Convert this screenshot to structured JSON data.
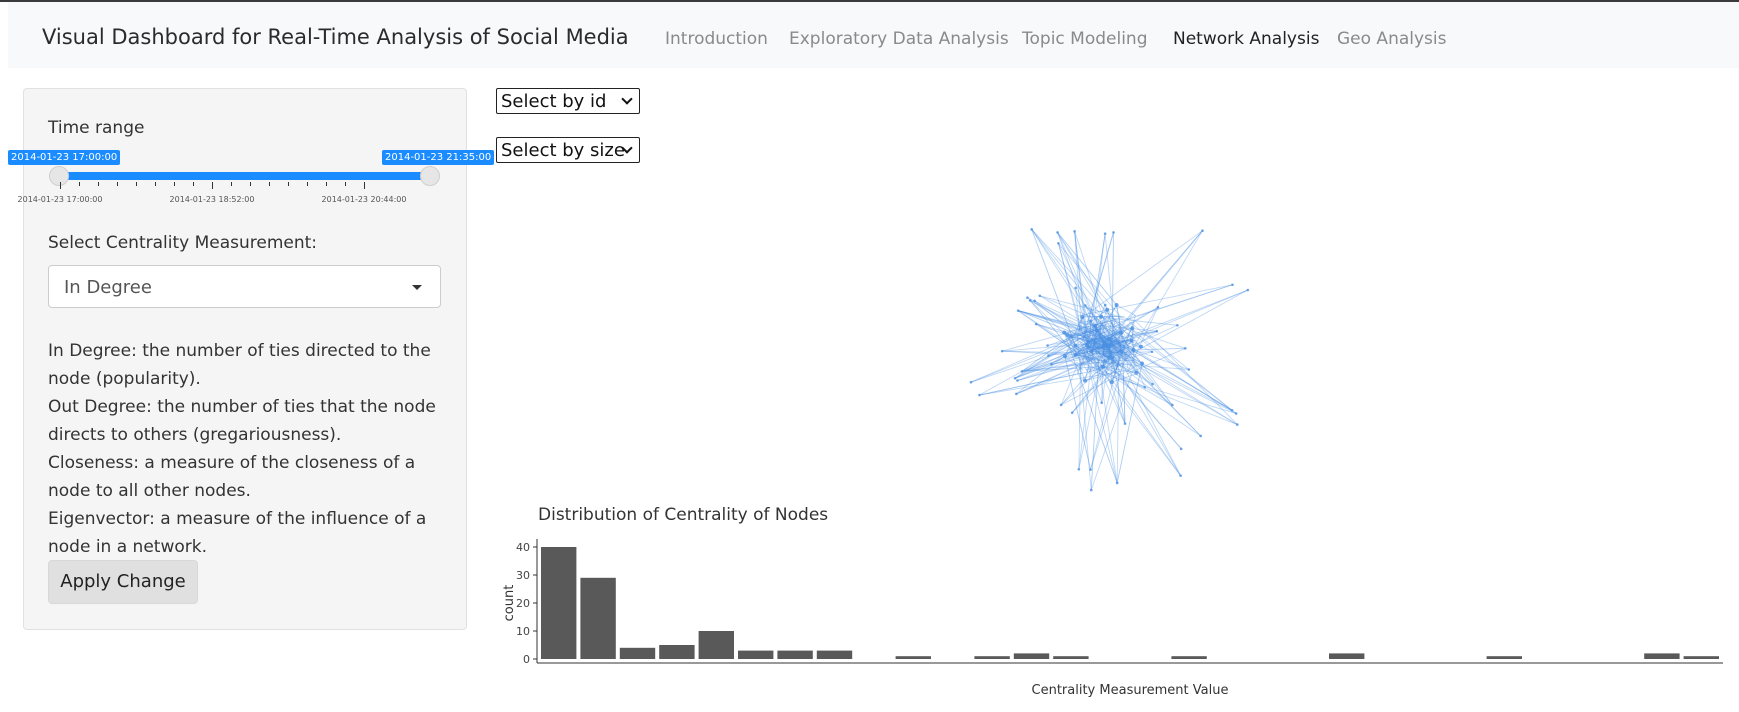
{
  "navbar": {
    "brand": "Visual Dashboard for Real-Time Analysis of Social Media",
    "links": [
      {
        "label": "Introduction",
        "active": false
      },
      {
        "label": "Exploratory Data Analysis",
        "active": false
      },
      {
        "label": "Topic Modeling",
        "active": false
      },
      {
        "label": "Network Analysis",
        "active": true
      },
      {
        "label": "Geo Analysis",
        "active": false
      }
    ]
  },
  "sidebar": {
    "time_range_label": "Time range",
    "slider": {
      "min_label": "2014-01-23 17:00:00",
      "max_label": "2014-01-23 21:35:00",
      "ticks": [
        "2014-01-23 17:00:00",
        "2014-01-23 18:52:00",
        "2014-01-23 20:44:00"
      ]
    },
    "centrality_label": "Select Centrality Measurement:",
    "centrality_value": "In Degree",
    "descriptions": [
      "In Degree: the number of ties directed to the node (popularity).",
      "Out Degree: the number of ties that the node directs to others (gregariousness).",
      "Closeness: a measure of the closeness of a node to all other nodes.",
      "Eigenvector: a measure of the influence of a node in a network."
    ],
    "apply_label": "Apply Change"
  },
  "main": {
    "select_id": "Select by id",
    "select_size": "Select by size",
    "network_color": "#4a90e2"
  },
  "chart_data": {
    "type": "bar",
    "title": "Distribution of Centrality of Nodes",
    "xlabel": "Centrality Measurement Value",
    "ylabel": "count",
    "ylim": [
      0,
      40
    ],
    "yticks": [
      0,
      10,
      20,
      30,
      40
    ],
    "bar_color": "#595959",
    "values": [
      40,
      29,
      4,
      5,
      10,
      3,
      3,
      3,
      0,
      1,
      0,
      1,
      2,
      1,
      0,
      0,
      1,
      0,
      0,
      0,
      2,
      0,
      0,
      0,
      1,
      0,
      0,
      0,
      2,
      1
    ]
  }
}
